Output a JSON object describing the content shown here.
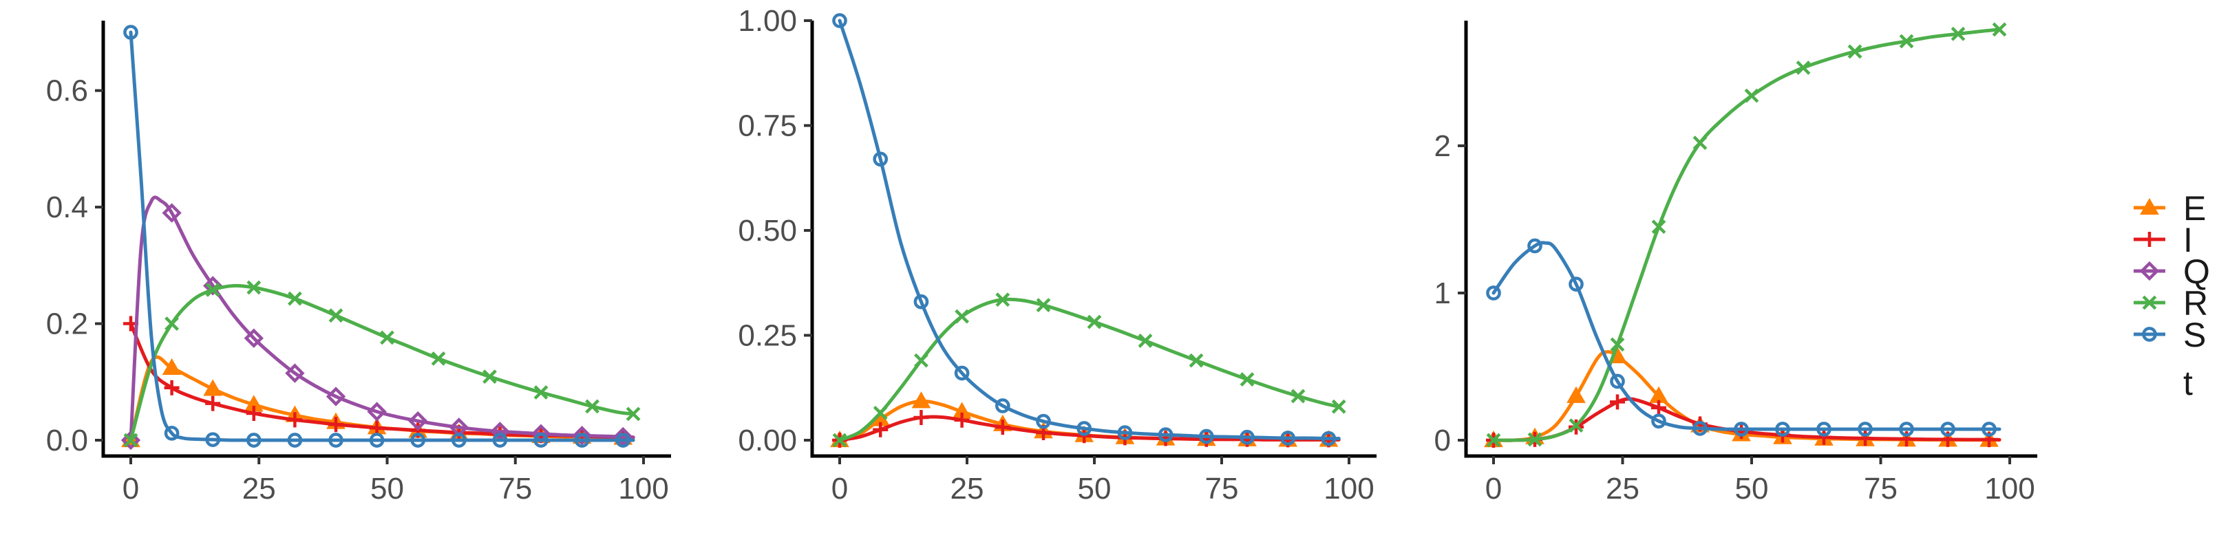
{
  "series_meta": [
    {
      "name": "E",
      "color": "#FF7F00",
      "shape": "triangle"
    },
    {
      "name": "I",
      "color": "#E41A1C",
      "shape": "plus"
    },
    {
      "name": "Q",
      "color": "#984EA3",
      "shape": "diamond"
    },
    {
      "name": "R",
      "color": "#4DAF4A",
      "shape": "cross"
    },
    {
      "name": "S",
      "color": "#377EB8",
      "shape": "circle"
    }
  ],
  "legend": {
    "entries": [
      "E",
      "I",
      "Q",
      "R",
      "S"
    ],
    "extra_label": "t",
    "position": "right"
  },
  "chart_data": [
    {
      "type": "line",
      "xlim": [
        0,
        100
      ],
      "ylim": [
        0,
        0.72
      ],
      "xticks": [
        0,
        25,
        50,
        75,
        100
      ],
      "yticks": [
        0.0,
        0.2,
        0.4,
        0.6
      ],
      "ytick_labels": [
        "0.0",
        "0.2",
        "0.4",
        "0.6"
      ],
      "grid": false,
      "series": [
        {
          "name": "E",
          "x": [
            0,
            4,
            8,
            12,
            16,
            20,
            24,
            28,
            32,
            36,
            40,
            44,
            48,
            52,
            56,
            60,
            64,
            68,
            72,
            76,
            80,
            84,
            88,
            92,
            96,
            98
          ],
          "y": [
            0.0,
            0.135,
            0.124,
            0.106,
            0.088,
            0.073,
            0.061,
            0.051,
            0.043,
            0.036,
            0.031,
            0.026,
            0.022,
            0.019,
            0.016,
            0.014,
            0.012,
            0.011,
            0.009,
            0.008,
            0.007,
            0.006,
            0.006,
            0.005,
            0.004,
            0.004
          ]
        },
        {
          "name": "I",
          "x": [
            0,
            4,
            8,
            12,
            16,
            20,
            24,
            28,
            32,
            36,
            40,
            44,
            48,
            52,
            56,
            60,
            64,
            68,
            72,
            76,
            80,
            84,
            88,
            92,
            96,
            98
          ],
          "y": [
            0.2,
            0.12,
            0.09,
            0.074,
            0.063,
            0.054,
            0.046,
            0.04,
            0.035,
            0.031,
            0.027,
            0.024,
            0.021,
            0.019,
            0.017,
            0.015,
            0.013,
            0.012,
            0.01,
            0.009,
            0.008,
            0.008,
            0.007,
            0.006,
            0.006,
            0.005
          ]
        },
        {
          "name": "Q",
          "x": [
            0,
            2,
            4,
            6,
            8,
            12,
            16,
            20,
            24,
            28,
            32,
            36,
            40,
            44,
            48,
            52,
            56,
            60,
            64,
            68,
            72,
            76,
            80,
            84,
            88,
            92,
            96,
            98
          ],
          "y": [
            0.0,
            0.33,
            0.41,
            0.41,
            0.39,
            0.32,
            0.265,
            0.215,
            0.175,
            0.143,
            0.115,
            0.093,
            0.075,
            0.061,
            0.049,
            0.04,
            0.033,
            0.027,
            0.022,
            0.018,
            0.015,
            0.013,
            0.011,
            0.009,
            0.008,
            0.007,
            0.006,
            0.005
          ]
        },
        {
          "name": "R",
          "x": [
            0,
            4,
            8,
            12,
            16,
            20,
            24,
            28,
            32,
            36,
            40,
            45,
            50,
            55,
            60,
            65,
            70,
            75,
            80,
            85,
            90,
            95,
            98
          ],
          "y": [
            0.0,
            0.13,
            0.2,
            0.24,
            0.258,
            0.265,
            0.262,
            0.254,
            0.243,
            0.229,
            0.214,
            0.195,
            0.176,
            0.158,
            0.14,
            0.124,
            0.109,
            0.095,
            0.082,
            0.07,
            0.058,
            0.048,
            0.045
          ]
        },
        {
          "name": "S",
          "x": [
            0,
            2,
            4,
            6,
            8,
            10,
            12,
            16,
            20,
            24,
            28,
            32,
            36,
            40,
            44,
            48,
            52,
            56,
            60,
            64,
            68,
            72,
            76,
            80,
            84,
            88,
            92,
            96,
            98
          ],
          "y": [
            0.7,
            0.45,
            0.18,
            0.05,
            0.012,
            0.004,
            0.002,
            0.001,
            0.0,
            0.0,
            0.0,
            0.0,
            0.0,
            0.0,
            0.0,
            0.0,
            0.0,
            0.0,
            0.0,
            0.0,
            0.0,
            0.0,
            0.0,
            0.0,
            0.0,
            0.0,
            0.0,
            0.0,
            0.0
          ]
        }
      ]
    },
    {
      "type": "line",
      "xlim": [
        0,
        100
      ],
      "ylim": [
        0,
        1.0
      ],
      "xticks": [
        0,
        25,
        50,
        75,
        100
      ],
      "yticks": [
        0.0,
        0.25,
        0.5,
        0.75,
        1.0
      ],
      "ytick_labels": [
        "0.00",
        "0.25",
        "0.50",
        "0.75",
        "1.00"
      ],
      "grid": false,
      "series": [
        {
          "name": "E",
          "x": [
            0,
            4,
            8,
            12,
            16,
            20,
            24,
            28,
            32,
            36,
            40,
            44,
            48,
            52,
            56,
            60,
            64,
            68,
            72,
            76,
            80,
            84,
            88,
            92,
            96,
            98
          ],
          "y": [
            0.0,
            0.015,
            0.05,
            0.08,
            0.093,
            0.085,
            0.068,
            0.052,
            0.038,
            0.028,
            0.021,
            0.016,
            0.012,
            0.009,
            0.007,
            0.005,
            0.004,
            0.003,
            0.003,
            0.002,
            0.002,
            0.002,
            0.001,
            0.001,
            0.001,
            0.001
          ]
        },
        {
          "name": "I",
          "x": [
            0,
            4,
            8,
            12,
            16,
            20,
            24,
            28,
            32,
            36,
            40,
            44,
            48,
            52,
            56,
            60,
            64,
            68,
            72,
            76,
            80,
            84,
            88,
            92,
            96,
            98
          ],
          "y": [
            0.0,
            0.008,
            0.025,
            0.043,
            0.054,
            0.055,
            0.048,
            0.039,
            0.031,
            0.024,
            0.018,
            0.014,
            0.011,
            0.008,
            0.006,
            0.005,
            0.004,
            0.003,
            0.002,
            0.002,
            0.002,
            0.001,
            0.001,
            0.001,
            0.001,
            0.001
          ]
        },
        {
          "name": "R",
          "x": [
            0,
            4,
            8,
            12,
            16,
            20,
            24,
            28,
            32,
            36,
            40,
            45,
            50,
            55,
            60,
            65,
            70,
            75,
            80,
            85,
            90,
            95,
            98
          ],
          "y": [
            0.0,
            0.02,
            0.065,
            0.125,
            0.19,
            0.25,
            0.295,
            0.322,
            0.335,
            0.333,
            0.322,
            0.303,
            0.282,
            0.26,
            0.237,
            0.213,
            0.19,
            0.167,
            0.145,
            0.124,
            0.105,
            0.088,
            0.08
          ]
        },
        {
          "name": "S",
          "x": [
            0,
            4,
            8,
            12,
            16,
            20,
            24,
            28,
            32,
            36,
            40,
            44,
            48,
            52,
            56,
            60,
            64,
            68,
            72,
            76,
            80,
            84,
            88,
            92,
            96,
            98
          ],
          "y": [
            1.0,
            0.85,
            0.67,
            0.47,
            0.33,
            0.225,
            0.16,
            0.115,
            0.082,
            0.06,
            0.045,
            0.035,
            0.028,
            0.022,
            0.018,
            0.015,
            0.013,
            0.011,
            0.009,
            0.008,
            0.007,
            0.006,
            0.005,
            0.005,
            0.004,
            0.004
          ]
        }
      ]
    },
    {
      "type": "line",
      "xlim": [
        0,
        100
      ],
      "ylim": [
        0,
        2.85
      ],
      "xticks": [
        0,
        25,
        50,
        75,
        100
      ],
      "yticks": [
        0,
        1,
        2
      ],
      "ytick_labels": [
        "0",
        "1",
        "2"
      ],
      "grid": false,
      "series": [
        {
          "name": "E",
          "x": [
            0,
            4,
            8,
            12,
            16,
            20,
            22,
            24,
            28,
            32,
            36,
            40,
            44,
            48,
            52,
            56,
            60,
            64,
            68,
            72,
            76,
            80,
            84,
            88,
            92,
            96,
            98
          ],
          "y": [
            0.0,
            0.0,
            0.02,
            0.1,
            0.3,
            0.55,
            0.6,
            0.57,
            0.45,
            0.3,
            0.18,
            0.1,
            0.06,
            0.04,
            0.03,
            0.02,
            0.015,
            0.01,
            0.008,
            0.006,
            0.005,
            0.004,
            0.003,
            0.003,
            0.002,
            0.002,
            0.002
          ]
        },
        {
          "name": "I",
          "x": [
            0,
            4,
            8,
            12,
            16,
            20,
            24,
            26,
            28,
            32,
            36,
            40,
            44,
            48,
            52,
            56,
            60,
            64,
            68,
            72,
            76,
            80,
            84,
            88,
            92,
            96,
            98
          ],
          "y": [
            0.0,
            0.0,
            0.005,
            0.03,
            0.09,
            0.18,
            0.26,
            0.28,
            0.27,
            0.22,
            0.16,
            0.11,
            0.08,
            0.06,
            0.045,
            0.035,
            0.025,
            0.02,
            0.015,
            0.012,
            0.01,
            0.008,
            0.006,
            0.005,
            0.004,
            0.004,
            0.003
          ]
        },
        {
          "name": "R",
          "x": [
            0,
            4,
            8,
            12,
            16,
            20,
            24,
            28,
            32,
            36,
            40,
            45,
            50,
            55,
            60,
            65,
            70,
            75,
            80,
            85,
            90,
            95,
            98
          ],
          "y": [
            0.0,
            0.0,
            0.005,
            0.03,
            0.1,
            0.3,
            0.65,
            1.05,
            1.45,
            1.78,
            2.02,
            2.2,
            2.34,
            2.45,
            2.53,
            2.59,
            2.64,
            2.68,
            2.71,
            2.74,
            2.76,
            2.78,
            2.79
          ]
        },
        {
          "name": "S",
          "x": [
            0,
            4,
            8,
            10,
            12,
            16,
            20,
            24,
            28,
            32,
            36,
            40,
            44,
            48,
            52,
            56,
            60,
            64,
            68,
            72,
            76,
            80,
            84,
            88,
            92,
            96,
            98
          ],
          "y": [
            1.0,
            1.2,
            1.32,
            1.34,
            1.3,
            1.06,
            0.7,
            0.4,
            0.22,
            0.13,
            0.09,
            0.08,
            0.075,
            0.075,
            0.075,
            0.075,
            0.075,
            0.075,
            0.075,
            0.075,
            0.075,
            0.075,
            0.075,
            0.075,
            0.075,
            0.075,
            0.075
          ]
        }
      ]
    }
  ]
}
